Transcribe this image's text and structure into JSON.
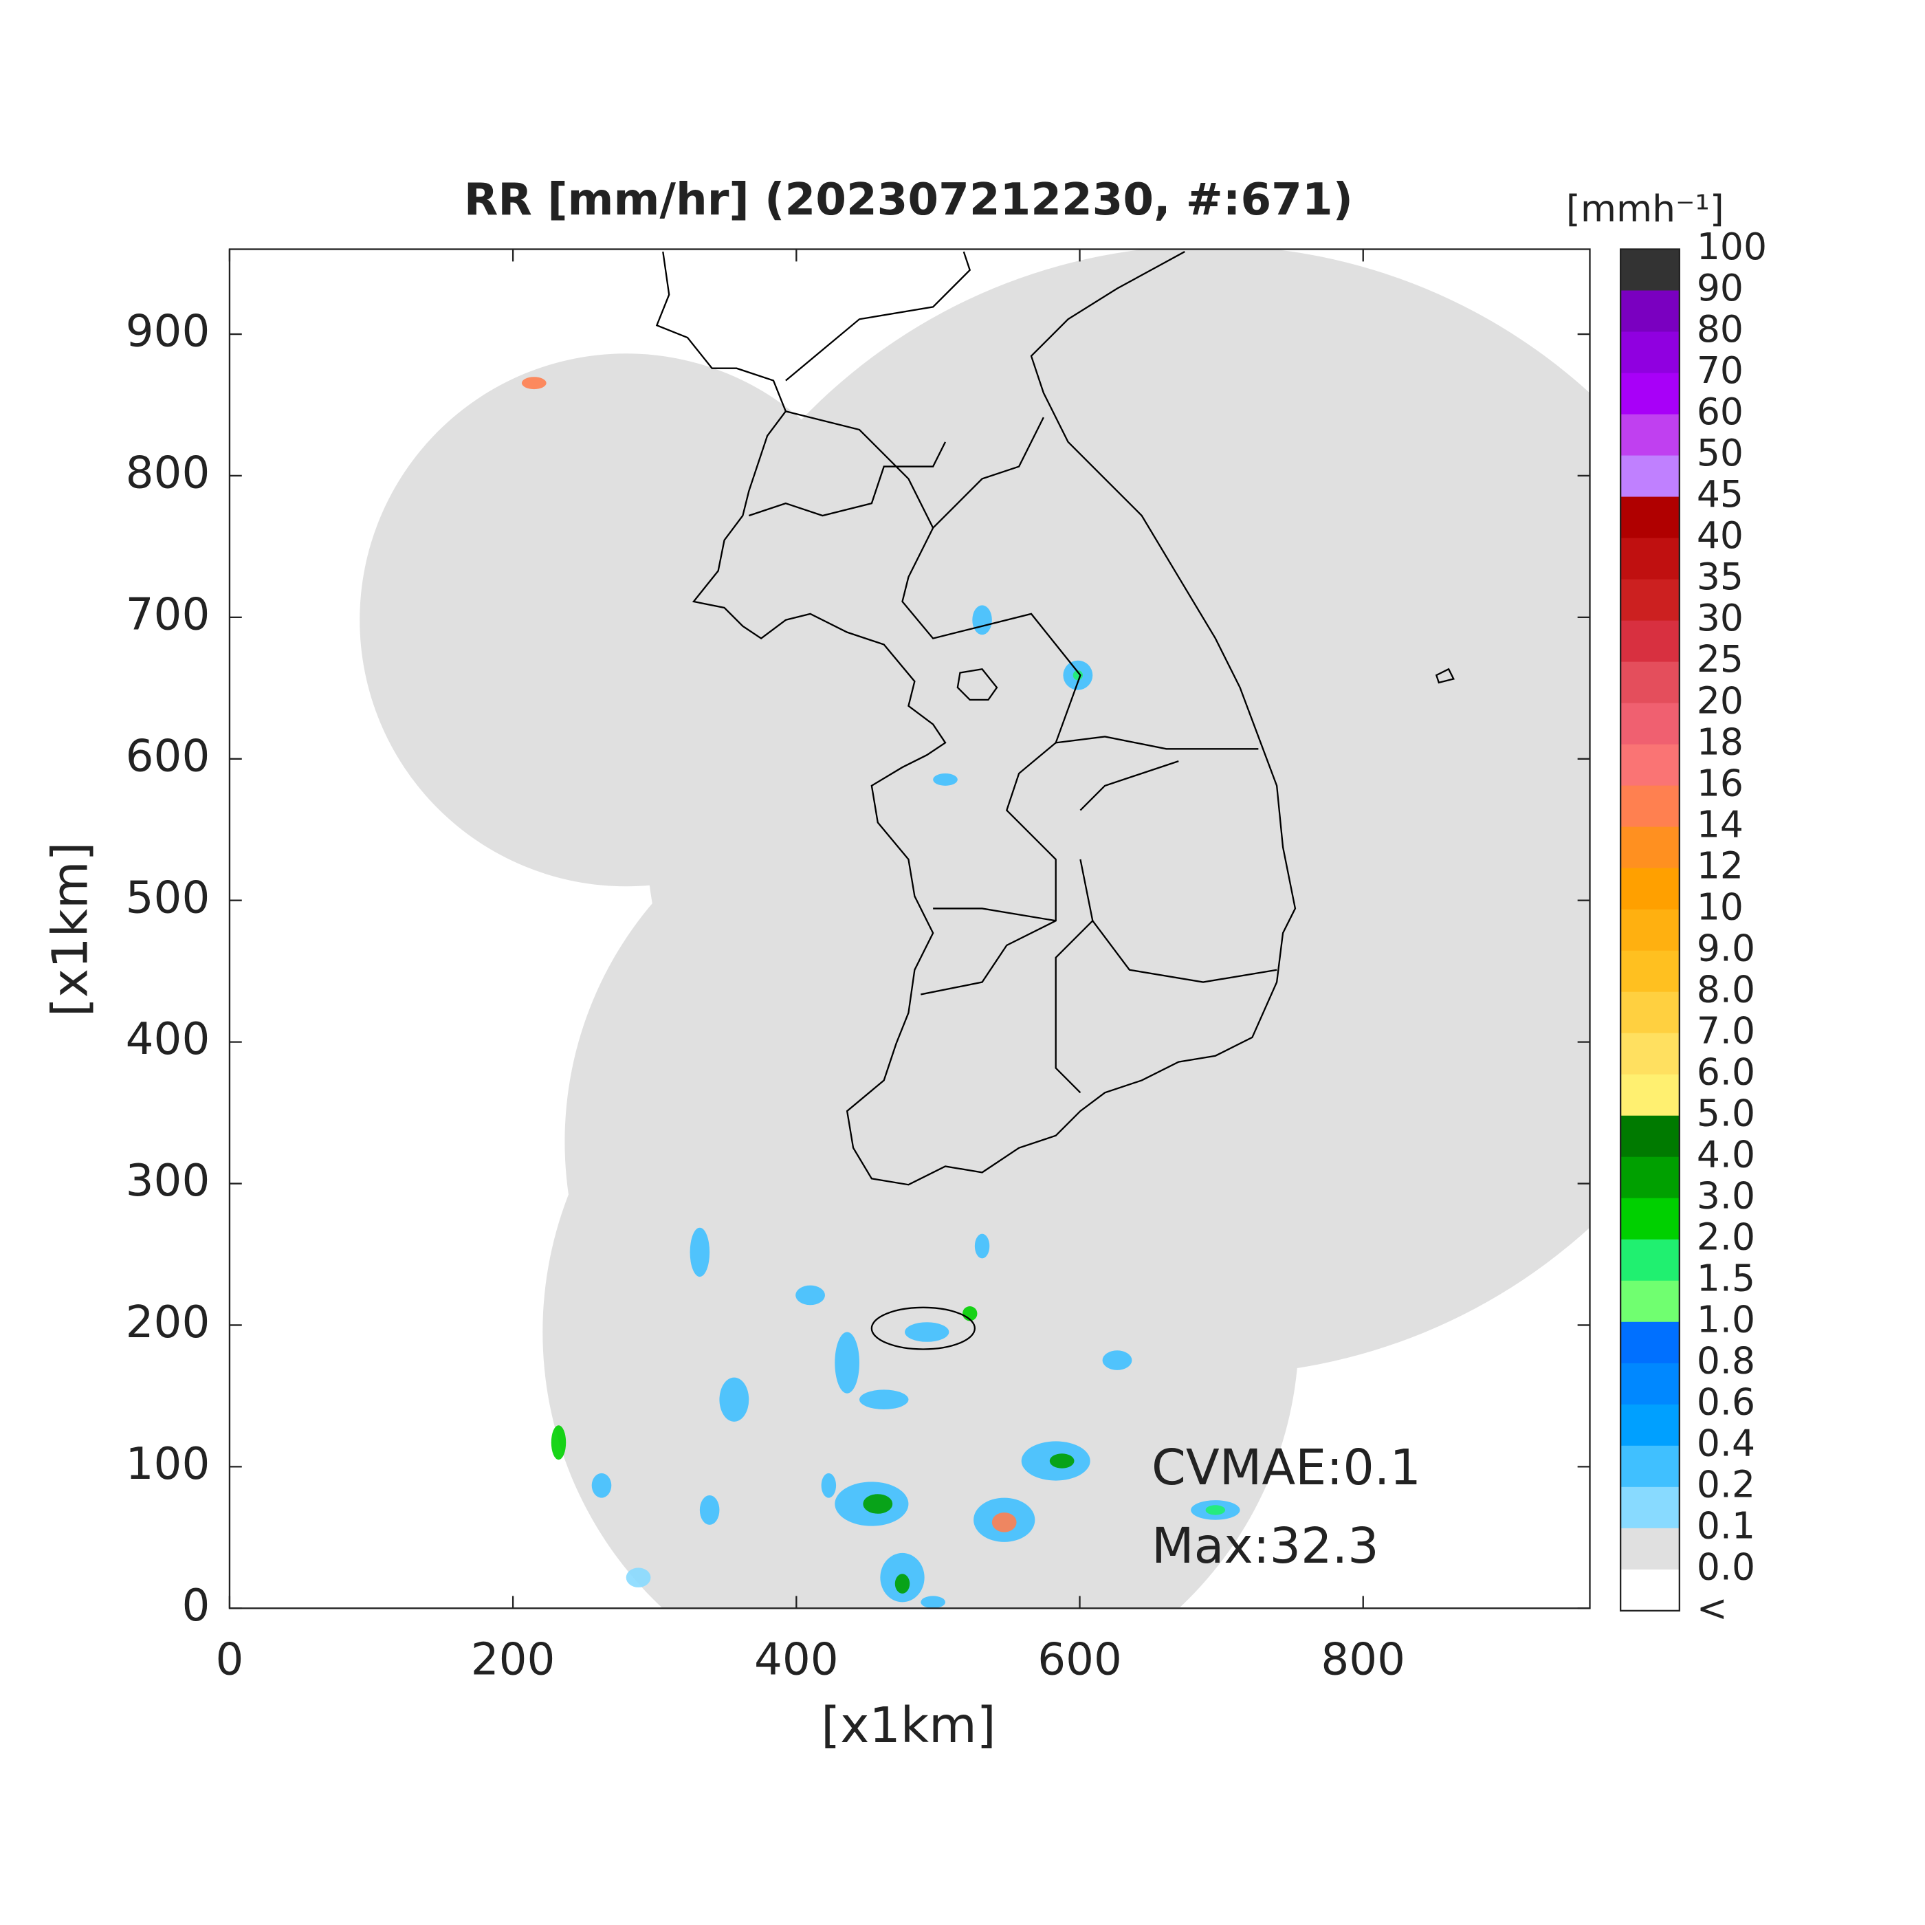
{
  "chart_data": {
    "type": "map",
    "title": "RR [mm/hr] (202307212230, #:671)",
    "xlabel": "[x1km]",
    "ylabel": "[x1km]",
    "xlim": [
      0,
      960
    ],
    "ylim": [
      0,
      960
    ],
    "xticks": [
      0,
      200,
      400,
      600,
      800
    ],
    "yticks": [
      0,
      100,
      200,
      300,
      400,
      500,
      600,
      700,
      800,
      900
    ],
    "annotations": [
      "CVMAE:0.1",
      "Max:32.3"
    ],
    "colorbar": {
      "label": "[mmh⁻¹]",
      "tick_labels": [
        "100",
        "90",
        "80",
        "70",
        "60",
        "50",
        "45",
        "40",
        "35",
        "30",
        "25",
        "20",
        "18",
        "16",
        "14",
        "12",
        "10",
        "9.0",
        "8.0",
        "7.0",
        "6.0",
        "5.0",
        "4.0",
        "3.0",
        "2.0",
        "1.5",
        "1.0",
        "0.8",
        "0.6",
        "0.4",
        "0.2",
        "0.1",
        "0.0",
        "<"
      ],
      "colors": [
        "#333333",
        "#7a00c0",
        "#9000e0",
        "#a800f8",
        "#c040f0",
        "#c080ff",
        "#b00000",
        "#c01010",
        "#cc2020",
        "#d83040",
        "#e44e5c",
        "#f06070",
        "#fa7474",
        "#ff8050",
        "#ff9020",
        "#ffa000",
        "#ffb010",
        "#ffc020",
        "#ffd040",
        "#ffe060",
        "#fff070",
        "#007a00",
        "#00a000",
        "#00d000",
        "#20f070",
        "#70ff70",
        "#0070ff",
        "#0088ff",
        "#00a0ff",
        "#40c0ff",
        "#88daff",
        "#e0e0e0",
        "#ffffff"
      ]
    }
  }
}
